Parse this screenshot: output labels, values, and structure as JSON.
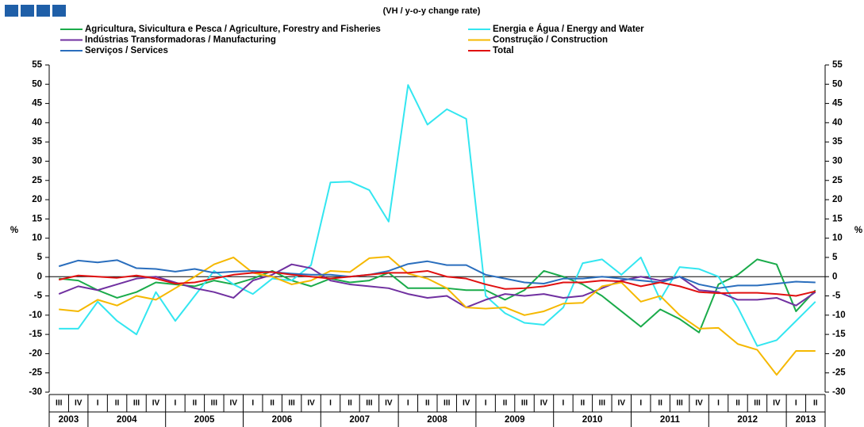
{
  "chart_data": {
    "type": "line",
    "subtitle": "(VH / y-o-y change rate)",
    "y_label": "%",
    "categories": [
      "III",
      "IV",
      "I",
      "II",
      "III",
      "IV",
      "I",
      "II",
      "III",
      "IV",
      "I",
      "II",
      "III",
      "IV",
      "I",
      "II",
      "III",
      "IV",
      "I",
      "II",
      "III",
      "IV",
      "I",
      "II",
      "III",
      "IV",
      "I",
      "II",
      "III",
      "IV",
      "I",
      "II",
      "III",
      "IV",
      "I",
      "II",
      "III",
      "IV",
      "I",
      "II"
    ],
    "years": [
      "2003",
      "2004",
      "2005",
      "2006",
      "2007",
      "2008",
      "2009",
      "2010",
      "2011",
      "2012",
      "2013"
    ],
    "ylim": [
      -30,
      55
    ],
    "yticks": [
      -30,
      -25,
      -20,
      -15,
      -10,
      -5,
      0,
      5,
      10,
      15,
      20,
      25,
      30,
      35,
      40,
      45,
      50,
      55
    ],
    "series": [
      {
        "name": "Agricultura, Sivicultura e Pesca / Agriculture, Forestry and Fisheries",
        "color": "#1aab4a",
        "values": [
          -0.5,
          -1,
          -3.5,
          -5.5,
          -4,
          -1.5,
          -2,
          -2.5,
          -1,
          -2,
          -0.5,
          1.5,
          -1,
          -2.5,
          -0.5,
          -1.5,
          -1,
          1,
          -3,
          -3,
          -3,
          -3.5,
          -3.5,
          -6,
          -3.5,
          1.5,
          0,
          -2,
          -5,
          -9,
          -13,
          -8.5,
          -11,
          -14.5,
          -2,
          0.5,
          4.5,
          3.2,
          -9,
          -3.5
        ]
      },
      {
        "name": "Energia e Água / Energy and Water",
        "color": "#33e6f0",
        "values": [
          -13.5,
          -13.5,
          -6.5,
          -11.5,
          -15,
          -4,
          -11.5,
          -5,
          1.5,
          -2,
          -4.5,
          -0.5,
          -1,
          3,
          24.5,
          24.7,
          22.5,
          14.3,
          49.8,
          39.5,
          43.5,
          41,
          -5,
          -9.5,
          -12,
          -12.5,
          -8,
          3.5,
          4.5,
          0.5,
          5,
          -6,
          2.5,
          2,
          0,
          -8,
          -18,
          -16.5,
          -11.5,
          -6.5
        ]
      },
      {
        "name": "Indústrias Transformadoras / Manufacturing",
        "color": "#7030a0",
        "values": [
          -4.5,
          -2.5,
          -3.5,
          -2,
          -0.5,
          0,
          -1.5,
          -3,
          -4,
          -5.5,
          -1,
          0.5,
          3.2,
          2.2,
          -1,
          -2,
          -2.5,
          -3,
          -4.5,
          -5.5,
          -5,
          -8,
          -6,
          -4.5,
          -5,
          -4.5,
          -5.5,
          -5,
          -3,
          -1,
          0,
          -1,
          0,
          -3.5,
          -4,
          -6,
          -6,
          -5.5,
          -7.5,
          -4
        ]
      },
      {
        "name": "Construção / Construction",
        "color": "#f5b800",
        "values": [
          -8.5,
          -9,
          -6,
          -7.5,
          -5,
          -6,
          -3,
          0,
          3.2,
          5,
          1,
          0,
          -2,
          -1,
          1.5,
          1.2,
          4.8,
          5.2,
          0.8,
          -0.5,
          -3,
          -8,
          -8.3,
          -8,
          -10,
          -9,
          -7,
          -6.8,
          -2.5,
          -1.5,
          -6.5,
          -5,
          -10,
          -13.5,
          -13.3,
          -17.5,
          -19,
          -25.5,
          -19.3,
          -19.3
        ]
      },
      {
        "name": "Serviços / Services",
        "color": "#2a6ebd",
        "values": [
          2.7,
          4.2,
          3.7,
          4.3,
          2.2,
          2,
          1.3,
          2,
          1,
          1.3,
          1.5,
          1.2,
          0.8,
          0.5,
          0.5,
          0,
          0.5,
          1.5,
          3.3,
          4,
          3,
          3,
          0.5,
          -0.5,
          -1.5,
          -1.8,
          -0.5,
          -0.5,
          0,
          -0.5,
          -1,
          -1.5,
          0,
          -2,
          -3,
          -2.3,
          -2.3,
          -1.8,
          -1.3,
          -1.5
        ]
      },
      {
        "name": "Total",
        "color": "#e01010",
        "values": [
          -0.8,
          0.3,
          0,
          -0.3,
          0.3,
          -0.5,
          -1.8,
          -1.5,
          -0.5,
          0.5,
          1,
          1.2,
          0.5,
          0,
          -0.5,
          0,
          0.5,
          1,
          1,
          1.5,
          0,
          -0.5,
          -2,
          -3.2,
          -3,
          -2.5,
          -1.5,
          -1.5,
          -1,
          -1.2,
          -2.5,
          -1.5,
          -2.5,
          -4,
          -4.3,
          -4.2,
          -4.2,
          -4.5,
          -5,
          -3.8
        ]
      }
    ]
  }
}
